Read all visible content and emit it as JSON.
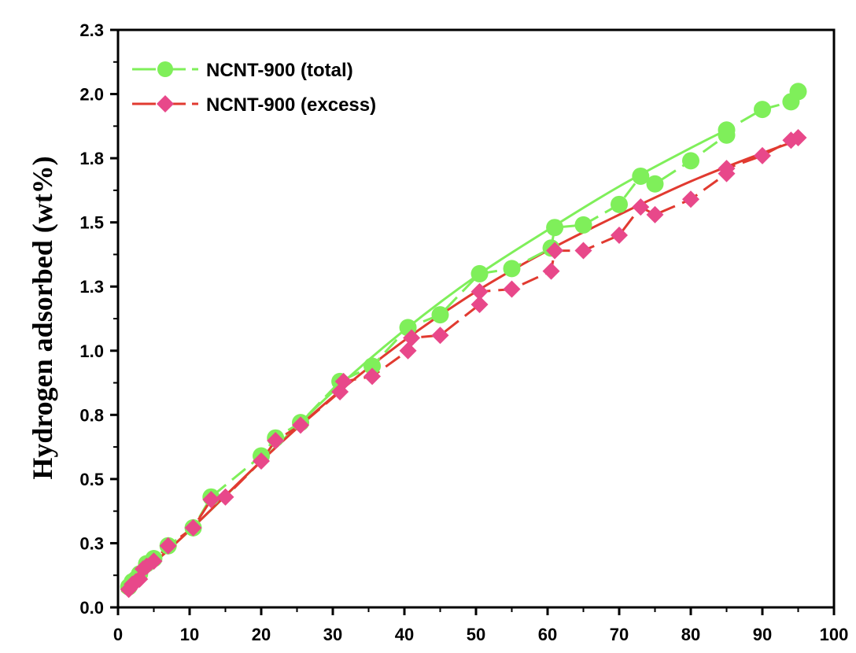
{
  "chart_data": {
    "type": "line",
    "title": "",
    "xlabel": "",
    "ylabel": "Hydrogen adsorbed (wt%)",
    "xlim": [
      0,
      100
    ],
    "ylim": [
      0,
      2.25
    ],
    "x_ticks": [
      0,
      10,
      20,
      30,
      40,
      50,
      60,
      70,
      80,
      90,
      100
    ],
    "y_ticks": [
      0.0,
      0.25,
      0.5,
      0.75,
      1.0,
      1.25,
      1.5,
      1.75,
      2.0,
      2.25
    ],
    "y_tick_labels": [
      "0.0",
      "0.3",
      "0.5",
      "0.8",
      "1.0",
      "1.3",
      "1.5",
      "1.8",
      "2.0",
      "2.3"
    ],
    "legend_position": "top-left",
    "grid": false,
    "series": [
      {
        "name": "NCNT-900 (total)",
        "color": "#7fef5a",
        "marker": "circle",
        "points": [
          [
            1.5,
            0.08
          ],
          [
            2.0,
            0.1
          ],
          [
            2.5,
            0.11
          ],
          [
            3.0,
            0.13
          ],
          [
            4.0,
            0.17
          ],
          [
            5.0,
            0.19
          ],
          [
            7.0,
            0.24
          ],
          [
            10.5,
            0.31
          ],
          [
            13.0,
            0.43
          ],
          [
            20.0,
            0.59
          ],
          [
            22.0,
            0.66
          ],
          [
            25.5,
            0.72
          ],
          [
            31.0,
            0.88
          ],
          [
            35.5,
            0.94
          ],
          [
            40.5,
            1.09
          ],
          [
            45.0,
            1.14
          ],
          [
            50.5,
            1.3
          ],
          [
            55.0,
            1.32
          ],
          [
            60.5,
            1.4
          ],
          [
            61.0,
            1.48
          ],
          [
            65.0,
            1.49
          ],
          [
            70.0,
            1.57
          ],
          [
            73.0,
            1.68
          ],
          [
            75.0,
            1.65
          ],
          [
            80.0,
            1.74
          ],
          [
            85.0,
            1.86
          ],
          [
            85.0,
            1.84
          ],
          [
            90.0,
            1.94
          ],
          [
            94.0,
            1.97
          ],
          [
            95.0,
            2.01
          ]
        ],
        "fit": [
          [
            0.5,
            0.06
          ],
          [
            10,
            0.3
          ],
          [
            20,
            0.57
          ],
          [
            30,
            0.84
          ],
          [
            40,
            1.08
          ],
          [
            50,
            1.29
          ],
          [
            60,
            1.47
          ],
          [
            70,
            1.64
          ],
          [
            80,
            1.79
          ],
          [
            85,
            1.86
          ]
        ]
      },
      {
        "name": "NCNT-900 (excess)",
        "color": "#e8488a",
        "line_color": "#e13a30",
        "marker": "diamond",
        "points": [
          [
            1.5,
            0.07
          ],
          [
            2.0,
            0.09
          ],
          [
            2.5,
            0.1
          ],
          [
            3.0,
            0.11
          ],
          [
            3.5,
            0.15
          ],
          [
            4.0,
            0.16
          ],
          [
            5.0,
            0.18
          ],
          [
            7.0,
            0.24
          ],
          [
            10.5,
            0.31
          ],
          [
            13.0,
            0.42
          ],
          [
            15.0,
            0.43
          ],
          [
            20.0,
            0.57
          ],
          [
            22.0,
            0.65
          ],
          [
            25.5,
            0.71
          ],
          [
            31.0,
            0.84
          ],
          [
            31.5,
            0.88
          ],
          [
            35.5,
            0.9
          ],
          [
            40.5,
            1.0
          ],
          [
            41.0,
            1.05
          ],
          [
            45.0,
            1.06
          ],
          [
            50.5,
            1.18
          ],
          [
            50.5,
            1.23
          ],
          [
            55.0,
            1.24
          ],
          [
            60.5,
            1.31
          ],
          [
            61.0,
            1.39
          ],
          [
            65.0,
            1.39
          ],
          [
            70.0,
            1.45
          ],
          [
            73.0,
            1.56
          ],
          [
            75.0,
            1.53
          ],
          [
            80.0,
            1.59
          ],
          [
            85.0,
            1.69
          ],
          [
            85.0,
            1.71
          ],
          [
            90.0,
            1.76
          ],
          [
            94.0,
            1.82
          ],
          [
            95.0,
            1.83
          ]
        ],
        "fit": [
          [
            0.5,
            0.06
          ],
          [
            10,
            0.3
          ],
          [
            20,
            0.57
          ],
          [
            30,
            0.82
          ],
          [
            40,
            1.04
          ],
          [
            50,
            1.23
          ],
          [
            60,
            1.39
          ],
          [
            70,
            1.53
          ],
          [
            80,
            1.66
          ],
          [
            90,
            1.77
          ],
          [
            95,
            1.82
          ]
        ]
      }
    ]
  }
}
